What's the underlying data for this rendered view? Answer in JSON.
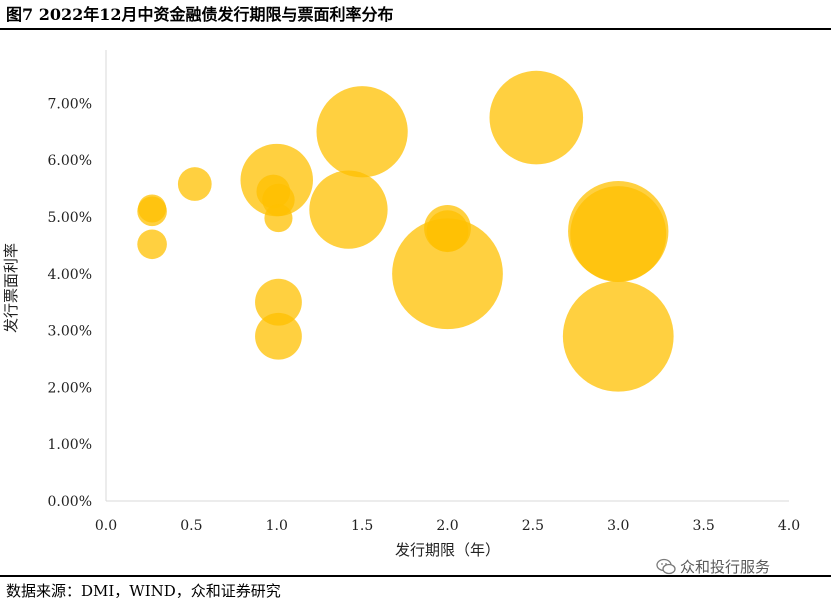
{
  "figure": {
    "title": "图7 2022年12月中资金融债发行期限与票面利率分布",
    "source": "数据来源：DMI，WIND，众和证券研究",
    "watermark": "众和投行服务",
    "watermark_icon": "wechat-icon"
  },
  "chart_data": {
    "type": "scatter",
    "variant": "bubble",
    "title": "",
    "xlabel": "发行期限（年）",
    "ylabel": "发行票面利率",
    "xlim": [
      0,
      4
    ],
    "ylim": [
      0,
      0.075
    ],
    "x_ticks": [
      0.0,
      0.5,
      1.0,
      1.5,
      2.0,
      2.5,
      3.0,
      3.5,
      4.0
    ],
    "x_tick_labels": [
      "0.0",
      "0.5",
      "1.0",
      "1.5",
      "2.0",
      "2.5",
      "3.0",
      "3.5",
      "4.0"
    ],
    "y_ticks": [
      0.0,
      0.01,
      0.02,
      0.03,
      0.04,
      0.05,
      0.06,
      0.07
    ],
    "y_tick_labels": [
      "0.00%",
      "1.00%",
      "2.00%",
      "3.00%",
      "4.00%",
      "5.00%",
      "6.00%",
      "7.00%"
    ],
    "grid": false,
    "color": "#FFC000",
    "points": [
      {
        "x": 0.27,
        "y": 0.0452,
        "size": 1.0
      },
      {
        "x": 0.27,
        "y": 0.051,
        "size": 1.0
      },
      {
        "x": 0.27,
        "y": 0.0515,
        "size": 0.9
      },
      {
        "x": 0.52,
        "y": 0.0558,
        "size": 1.3
      },
      {
        "x": 1.0,
        "y": 0.0565,
        "size": 6.0
      },
      {
        "x": 0.98,
        "y": 0.0545,
        "size": 1.3
      },
      {
        "x": 1.01,
        "y": 0.053,
        "size": 1.2
      },
      {
        "x": 1.01,
        "y": 0.0498,
        "size": 0.9
      },
      {
        "x": 1.01,
        "y": 0.035,
        "size": 2.5
      },
      {
        "x": 1.01,
        "y": 0.029,
        "size": 2.5
      },
      {
        "x": 1.42,
        "y": 0.0513,
        "size": 7.0
      },
      {
        "x": 1.5,
        "y": 0.065,
        "size": 9.5
      },
      {
        "x": 2.0,
        "y": 0.048,
        "size": 2.5
      },
      {
        "x": 2.0,
        "y": 0.0475,
        "size": 2.0
      },
      {
        "x": 2.0,
        "y": 0.04,
        "size": 14.0
      },
      {
        "x": 2.52,
        "y": 0.0675,
        "size": 10.0
      },
      {
        "x": 3.0,
        "y": 0.0475,
        "size": 11.5
      },
      {
        "x": 3.0,
        "y": 0.047,
        "size": 10.5
      },
      {
        "x": 3.0,
        "y": 0.029,
        "size": 14.0
      }
    ]
  }
}
